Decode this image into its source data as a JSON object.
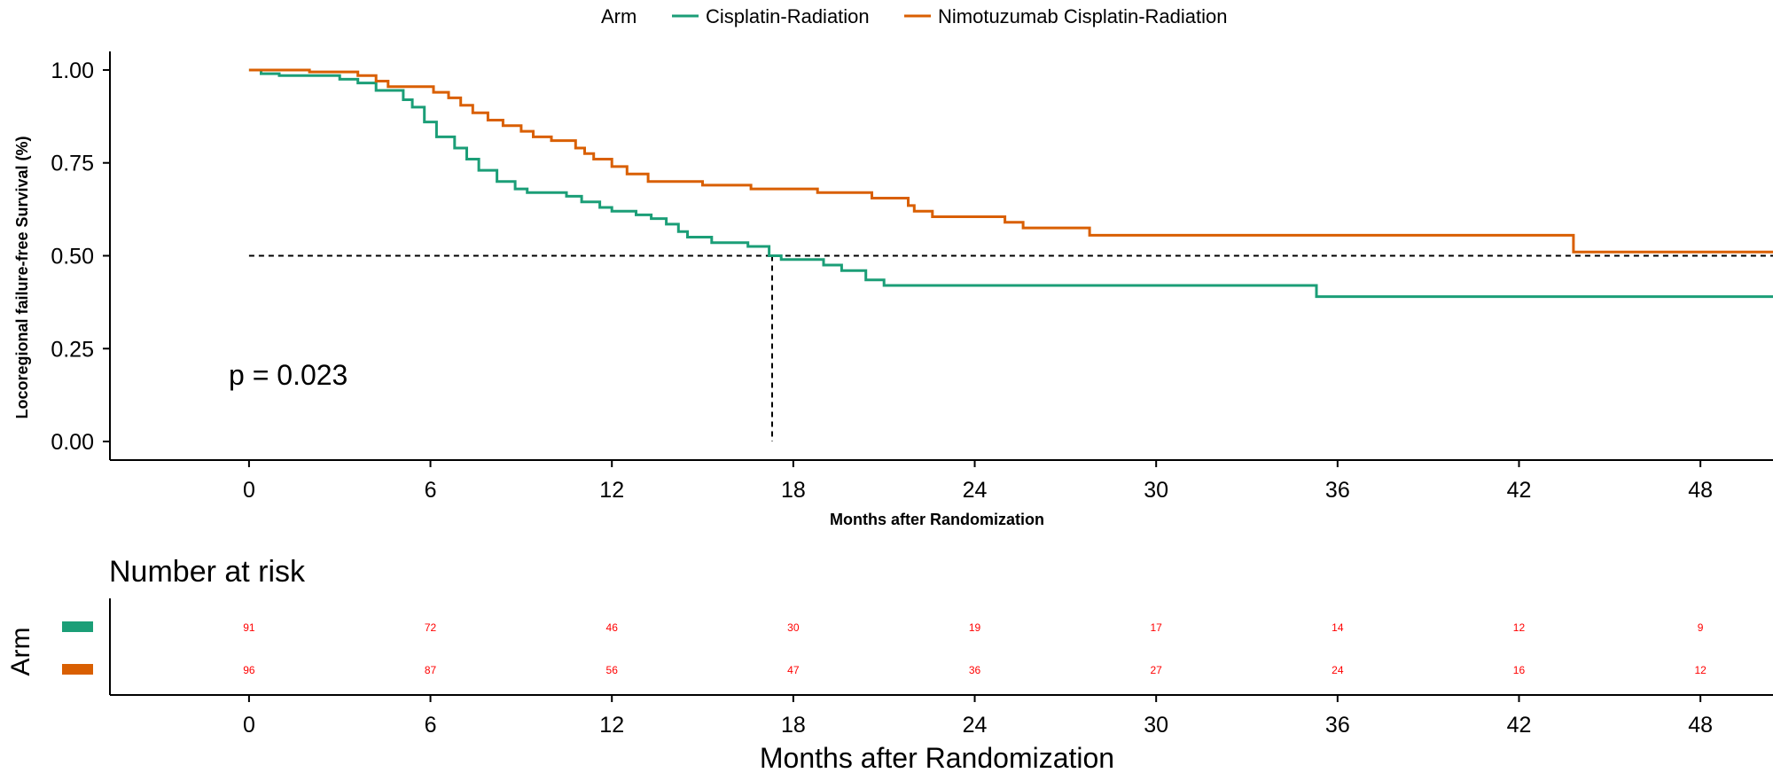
{
  "chart_data": {
    "type": "line",
    "subtype": "kaplan-meier",
    "legend": {
      "title": "Arm",
      "position": "top",
      "entries": [
        {
          "name": "Cisplatin-Radiation",
          "color": "#1b9e77"
        },
        {
          "name": "Nimotuzumab Cisplatin-Radiation",
          "color": "#d95f02"
        }
      ]
    },
    "ylabel": "Locoregional failure-free Survival (%)",
    "xlabel": "Months after Randomization",
    "xlim": [
      -4.6,
      50.4
    ],
    "ylim": [
      -0.05,
      1.05
    ],
    "x_ticks": [
      0,
      6,
      12,
      18,
      24,
      30,
      36,
      42,
      48
    ],
    "x_tick_labels": [
      "0",
      "6",
      "12",
      "18",
      "24",
      "30",
      "36",
      "42",
      "48"
    ],
    "y_ticks": [
      0,
      0.25,
      0.5,
      0.75,
      1.0
    ],
    "y_tick_labels": [
      "0.00",
      "0.25",
      "0.50",
      "0.75",
      "1.00"
    ],
    "annotation": "p = 0.023",
    "median_reference": {
      "y": 0.5,
      "x_median": 17.3
    },
    "series": [
      {
        "name": "Cisplatin-Radiation",
        "color": "#1b9e77",
        "points": [
          [
            0,
            1.0
          ],
          [
            0.4,
            0.99
          ],
          [
            1,
            0.985
          ],
          [
            3,
            0.975
          ],
          [
            3.6,
            0.965
          ],
          [
            4.2,
            0.945
          ],
          [
            5.1,
            0.92
          ],
          [
            5.4,
            0.9
          ],
          [
            5.8,
            0.86
          ],
          [
            6.2,
            0.82
          ],
          [
            6.8,
            0.79
          ],
          [
            7.2,
            0.76
          ],
          [
            7.6,
            0.73
          ],
          [
            8.2,
            0.7
          ],
          [
            8.8,
            0.68
          ],
          [
            9.2,
            0.67
          ],
          [
            10.5,
            0.66
          ],
          [
            11,
            0.645
          ],
          [
            11.6,
            0.63
          ],
          [
            12,
            0.62
          ],
          [
            12.8,
            0.61
          ],
          [
            13.3,
            0.6
          ],
          [
            13.8,
            0.585
          ],
          [
            14.2,
            0.565
          ],
          [
            14.5,
            0.55
          ],
          [
            15.3,
            0.535
          ],
          [
            16.5,
            0.525
          ],
          [
            17.2,
            0.5
          ],
          [
            17.6,
            0.49
          ],
          [
            19,
            0.475
          ],
          [
            19.6,
            0.46
          ],
          [
            20.4,
            0.435
          ],
          [
            21,
            0.42
          ],
          [
            35.3,
            0.39
          ],
          [
            50.4,
            0.39
          ]
        ]
      },
      {
        "name": "Nimotuzumab Cisplatin-Radiation",
        "color": "#d95f02",
        "points": [
          [
            0,
            1.0
          ],
          [
            2,
            0.995
          ],
          [
            3.6,
            0.985
          ],
          [
            4.2,
            0.97
          ],
          [
            4.6,
            0.955
          ],
          [
            6.1,
            0.94
          ],
          [
            6.6,
            0.925
          ],
          [
            7,
            0.905
          ],
          [
            7.4,
            0.885
          ],
          [
            7.9,
            0.865
          ],
          [
            8.4,
            0.85
          ],
          [
            9,
            0.835
          ],
          [
            9.4,
            0.82
          ],
          [
            10,
            0.81
          ],
          [
            10.8,
            0.79
          ],
          [
            11.1,
            0.775
          ],
          [
            11.4,
            0.76
          ],
          [
            12,
            0.74
          ],
          [
            12.5,
            0.72
          ],
          [
            13.2,
            0.7
          ],
          [
            15,
            0.69
          ],
          [
            16.6,
            0.68
          ],
          [
            18.8,
            0.67
          ],
          [
            20.6,
            0.655
          ],
          [
            21.8,
            0.635
          ],
          [
            22,
            0.62
          ],
          [
            22.6,
            0.605
          ],
          [
            25,
            0.59
          ],
          [
            25.6,
            0.575
          ],
          [
            27.8,
            0.555
          ],
          [
            43.8,
            0.51
          ],
          [
            50.4,
            0.51
          ]
        ]
      }
    ]
  },
  "risk_table": {
    "title": "Number at risk",
    "ylabel": "Arm",
    "xlabel": "Months after Randomization",
    "times": [
      0,
      6,
      12,
      18,
      24,
      30,
      36,
      42,
      48
    ],
    "time_labels": [
      "0",
      "6",
      "12",
      "18",
      "24",
      "30",
      "36",
      "42",
      "48"
    ],
    "number_color": "#ff0000",
    "rows": [
      {
        "name": "Cisplatin-Radiation",
        "color": "#1b9e77",
        "counts": [
          "91",
          "72",
          "46",
          "30",
          "19",
          "17",
          "14",
          "12",
          "9"
        ]
      },
      {
        "name": "Nimotuzumab Cisplatin-Radiation",
        "color": "#d95f02",
        "counts": [
          "96",
          "87",
          "56",
          "47",
          "36",
          "27",
          "24",
          "16",
          "12"
        ]
      }
    ]
  }
}
